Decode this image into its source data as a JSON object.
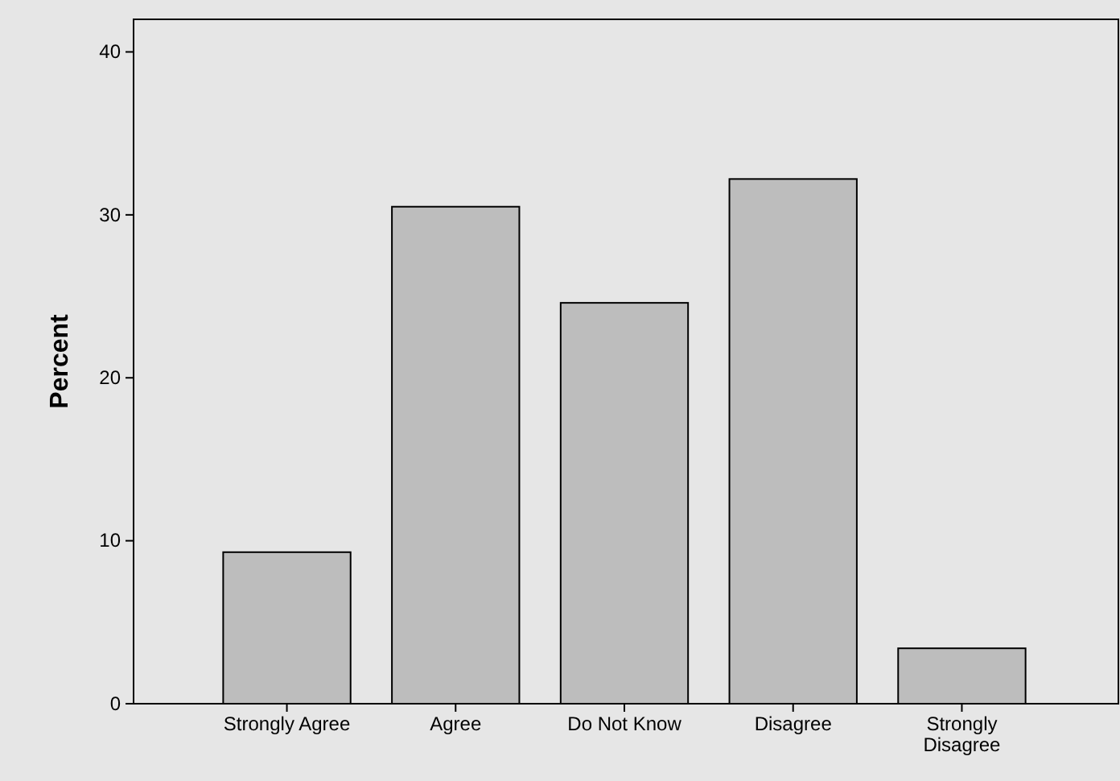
{
  "chart_data": {
    "type": "bar",
    "ylabel": "Percent",
    "categories": [
      "Strongly Agree",
      "Agree",
      "Do Not Know",
      "Disagree",
      "Strongly Disagree"
    ],
    "values": [
      9.3,
      30.5,
      24.6,
      32.2,
      3.4
    ],
    "color": "#bdbdbd",
    "ylim": [
      0,
      42
    ],
    "yticks": [
      0,
      10,
      20,
      30,
      40
    ],
    "grid": false
  }
}
